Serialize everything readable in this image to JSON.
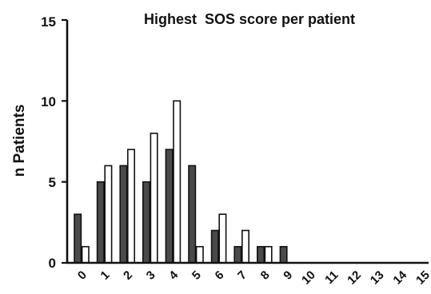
{
  "chart_data": {
    "type": "bar",
    "title": "Highest  SOS score per patient",
    "xlabel": "",
    "ylabel": "n Patients",
    "categories": [
      "0",
      "1",
      "2",
      "3",
      "4",
      "5",
      "6",
      "7",
      "8",
      "9",
      "10",
      "11",
      "12",
      "13",
      "14",
      "15"
    ],
    "yticks": [
      "0",
      "5",
      "10",
      "15"
    ],
    "ylim": [
      0,
      15
    ],
    "grid": false,
    "series": [
      {
        "values": [
          3,
          5,
          6,
          5,
          7,
          6,
          2,
          1,
          1,
          1,
          0,
          0,
          0,
          0,
          0,
          0
        ],
        "color": "#4a4a4a"
      },
      {
        "values": [
          1,
          6,
          7,
          8,
          10,
          1,
          3,
          2,
          1,
          0,
          0,
          0,
          0,
          0,
          0,
          0
        ],
        "color": "#ffffff"
      }
    ]
  }
}
